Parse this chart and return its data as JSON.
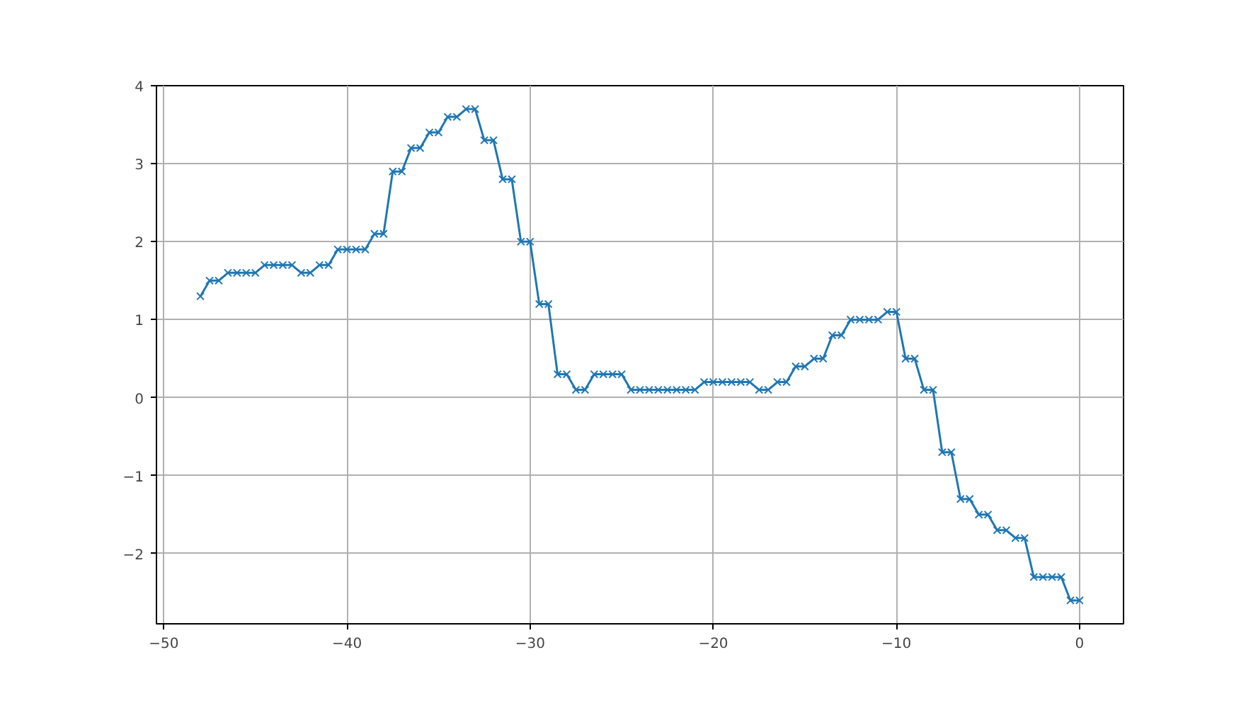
{
  "chart_data": {
    "type": "line",
    "marker": "cross",
    "line_style": "solid",
    "grid": true,
    "x": [
      -48,
      -47.5,
      -47,
      -46.5,
      -46,
      -45.5,
      -45,
      -44.5,
      -44,
      -43.5,
      -43,
      -42.5,
      -42,
      -41.5,
      -41,
      -40.5,
      -40,
      -39.5,
      -39,
      -38.5,
      -38,
      -37.5,
      -37,
      -36.5,
      -36,
      -35.5,
      -35,
      -34.5,
      -34,
      -33.5,
      -33,
      -32.5,
      -32,
      -31.5,
      -31,
      -30.5,
      -30,
      -29.5,
      -29,
      -28.5,
      -28,
      -27.5,
      -27,
      -26.5,
      -26,
      -25.5,
      -25,
      -24.5,
      -24,
      -23.5,
      -23,
      -22.5,
      -22,
      -21.5,
      -21,
      -20.5,
      -20,
      -19.5,
      -19,
      -18.5,
      -18,
      -17.5,
      -17,
      -16.5,
      -16,
      -15.5,
      -15,
      -14.5,
      -14,
      -13.5,
      -13,
      -12.5,
      -12,
      -11.5,
      -11,
      -10.5,
      -10,
      -9.5,
      -9,
      -8.5,
      -8,
      -7.5,
      -7,
      -6.5,
      -6,
      -5.5,
      -5,
      -4.5,
      -4,
      -3.5,
      -3,
      -2.5,
      -2,
      -1.5,
      -1,
      -0.5,
      0
    ],
    "series": [
      {
        "color": "#1f77b4",
        "values": [
          1.3,
          1.5,
          1.5,
          1.6,
          1.6,
          1.6,
          1.6,
          1.7,
          1.7,
          1.7,
          1.7,
          1.6,
          1.6,
          1.7,
          1.7,
          1.9,
          1.9,
          1.9,
          1.9,
          2.1,
          2.1,
          2.9,
          2.9,
          3.2,
          3.2,
          3.4,
          3.4,
          3.6,
          3.6,
          3.7,
          3.7,
          3.3,
          3.3,
          2.8,
          2.8,
          2.0,
          2.0,
          1.2,
          1.2,
          0.3,
          0.3,
          0.1,
          0.1,
          0.3,
          0.3,
          0.3,
          0.3,
          0.1,
          0.1,
          0.1,
          0.1,
          0.1,
          0.1,
          0.1,
          0.1,
          0.2,
          0.2,
          0.2,
          0.2,
          0.2,
          0.2,
          0.1,
          0.1,
          0.2,
          0.2,
          0.4,
          0.4,
          0.5,
          0.5,
          0.8,
          0.8,
          1.0,
          1.0,
          1.0,
          1.0,
          1.1,
          1.1,
          0.5,
          0.5,
          0.1,
          0.1,
          -0.7,
          -0.7,
          -1.3,
          -1.3,
          -1.5,
          -1.5,
          -1.7,
          -1.7,
          -1.8,
          -1.8,
          -2.3,
          -2.3,
          -2.3,
          -2.3,
          -2.6,
          -2.6
        ]
      }
    ],
    "xlim": [
      -50.4,
      2.4
    ],
    "ylim": [
      -2.9,
      4.0
    ],
    "xticks": [
      {
        "value": -50,
        "label": "−50"
      },
      {
        "value": -40,
        "label": "−40"
      },
      {
        "value": -30,
        "label": "−30"
      },
      {
        "value": -20,
        "label": "−20"
      },
      {
        "value": -10,
        "label": "−10"
      },
      0
    ],
    "yticks": [
      {
        "value": -2,
        "label": "−2"
      },
      {
        "value": -1,
        "label": "−1"
      },
      0,
      1,
      2,
      3,
      4
    ]
  }
}
